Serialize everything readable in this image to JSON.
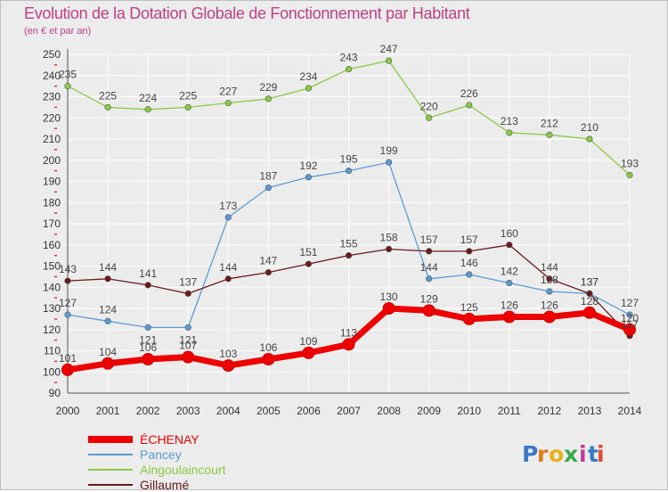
{
  "title": "Evolution de la Dotation Globale de Fonctionnement par Habitant",
  "subtitle": "(en € et par an)",
  "logo": "Proxiti",
  "colors": {
    "title": "#c04086",
    "background": "#ececec",
    "grid": "#ffffff"
  },
  "chart_data": {
    "type": "line",
    "x": [
      2000,
      2001,
      2002,
      2003,
      2004,
      2005,
      2006,
      2007,
      2008,
      2009,
      2010,
      2011,
      2012,
      2013,
      2014
    ],
    "ylim": [
      90,
      250
    ],
    "yticks": [
      90,
      100,
      110,
      120,
      130,
      140,
      150,
      160,
      170,
      180,
      190,
      200,
      210,
      220,
      230,
      240,
      250
    ],
    "grid": true,
    "legend_position": "bottom-left",
    "series": [
      {
        "name": "Aingoulaincourt",
        "color": "#88cc44",
        "values": [
          235,
          225,
          224,
          225,
          227,
          229,
          234,
          243,
          247,
          220,
          226,
          213,
          212,
          210,
          193
        ]
      },
      {
        "name": "Pancey",
        "color": "#5b9bd5",
        "values": [
          127,
          124,
          121,
          121,
          173,
          187,
          192,
          195,
          199,
          144,
          146,
          142,
          138,
          137,
          127
        ]
      },
      {
        "name": "Gillaumé",
        "color": "#6b1a1a",
        "values": [
          143,
          144,
          141,
          137,
          144,
          147,
          151,
          155,
          158,
          157,
          157,
          160,
          144,
          137,
          117
        ]
      },
      {
        "name": "ÉCHENAY",
        "color": "#ee0000",
        "values": [
          101,
          104,
          106,
          107,
          103,
          106,
          109,
          113,
          130,
          129,
          125,
          126,
          126,
          128,
          120
        ]
      }
    ]
  }
}
